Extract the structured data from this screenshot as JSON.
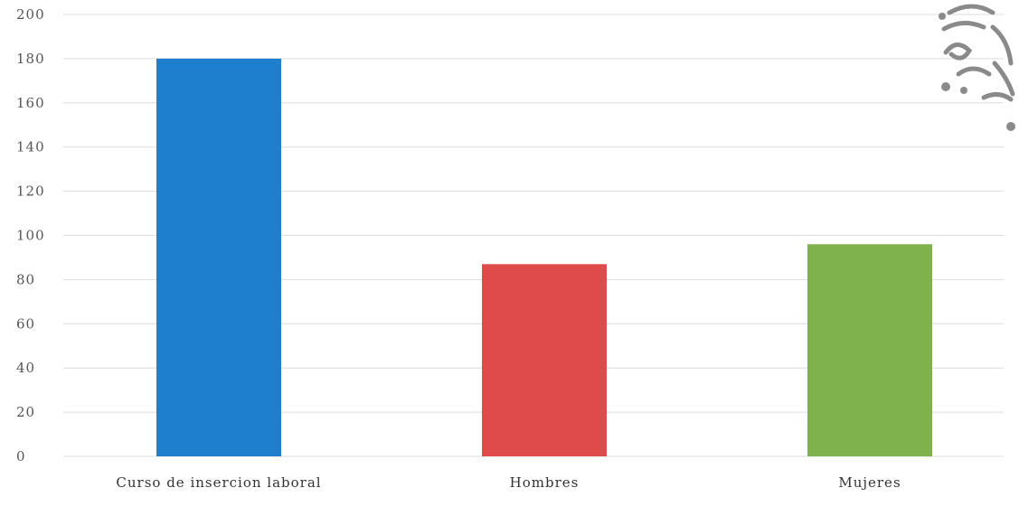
{
  "chart_data": {
    "type": "bar",
    "title": "",
    "xlabel": "",
    "ylabel": "",
    "categories": [
      "Curso de insercion laboral",
      "Hombres",
      "Mujeres"
    ],
    "values": [
      180,
      87,
      96
    ],
    "colors": [
      "#1f7fcf",
      "#df4b4b",
      "#7fb24c"
    ],
    "ylim": [
      0,
      200
    ],
    "yticks": [
      0,
      20,
      40,
      60,
      80,
      100,
      120,
      140,
      160,
      180,
      200
    ],
    "grid": true,
    "legend": "none"
  },
  "watermark": {
    "icon": "decorative-emblem-icon"
  }
}
